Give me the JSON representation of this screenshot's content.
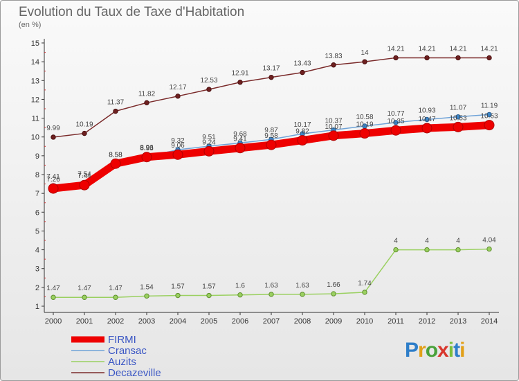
{
  "header": {
    "title": "Evolution du Taux de Taxe d'Habitation",
    "unit": "(en %)"
  },
  "logo": {
    "text": "Proxiti",
    "colors": [
      "#2e7ec9",
      "#e2a018",
      "#4aa23b",
      "#d8372d",
      "#7bbf3a",
      "#2e7ec9",
      "#e2a018"
    ]
  },
  "chart_data": {
    "type": "line",
    "title": "Evolution du Taux de Taxe d'Habitation",
    "ylabel": "(en %)",
    "xlabel": "",
    "ylim": [
      1,
      15
    ],
    "y_ticks": [
      1,
      2,
      3,
      4,
      5,
      6,
      7,
      8,
      9,
      10,
      11,
      12,
      13,
      14,
      15
    ],
    "grid": false,
    "legend_position": "bottom-left",
    "categories": [
      "2000",
      "2001",
      "2002",
      "2003",
      "2004",
      "2005",
      "2006",
      "2007",
      "2008",
      "2009",
      "2010",
      "2011",
      "2012",
      "2013",
      "2014"
    ],
    "series": [
      {
        "name": "FIRMI",
        "color": "#ee0000",
        "values": [
          7.26,
          7.44,
          8.58,
          8.93,
          9.06,
          9.24,
          9.41,
          9.58,
          9.82,
          10.07,
          10.19,
          10.35,
          10.47,
          10.53,
          10.63
        ],
        "labels": [
          "7.26",
          "7.44",
          "8.58",
          "8.93",
          "9.06",
          "9.24",
          "9.41",
          "9.58",
          "9.82",
          "10.07",
          "10.19",
          "10.35",
          "10.47",
          "10.53",
          "10.63"
        ]
      },
      {
        "name": "Cransac",
        "color": "#6fa3d8",
        "values": [
          7.41,
          7.54,
          8.58,
          8.96,
          9.32,
          9.51,
          9.68,
          9.87,
          10.17,
          10.37,
          10.58,
          10.77,
          10.93,
          11.07,
          11.19
        ],
        "labels": [
          "7.41",
          "7.54",
          "8.58",
          "8.96",
          "9.32",
          "9.51",
          "9.68",
          "9.87",
          "10.17",
          "10.37",
          "10.58",
          "10.77",
          "10.93",
          "11.07",
          "11.19"
        ]
      },
      {
        "name": "Auzits",
        "color": "#9ad060",
        "values": [
          1.47,
          1.47,
          1.47,
          1.54,
          1.57,
          1.57,
          1.6,
          1.63,
          1.63,
          1.66,
          1.74,
          4,
          4,
          4,
          4.04
        ],
        "labels": [
          "1.47",
          "1.47",
          "1.47",
          "1.54",
          "1.57",
          "1.57",
          "1.6",
          "1.63",
          "1.63",
          "1.66",
          "1.74",
          "4",
          "4",
          "4",
          "4.04"
        ]
      },
      {
        "name": "Decazeville",
        "color": "#7a2a2a",
        "values": [
          9.99,
          10.19,
          11.37,
          11.82,
          12.17,
          12.53,
          12.91,
          13.17,
          13.43,
          13.83,
          14,
          14.21,
          14.21,
          14.21,
          14.21
        ],
        "labels": [
          "9.99",
          "10.19",
          "11.37",
          "11.82",
          "12.17",
          "12.53",
          "12.91",
          "13.17",
          "13.43",
          "13.83",
          "14",
          "14.21",
          "14.21",
          "14.21",
          "14.21"
        ]
      }
    ]
  }
}
